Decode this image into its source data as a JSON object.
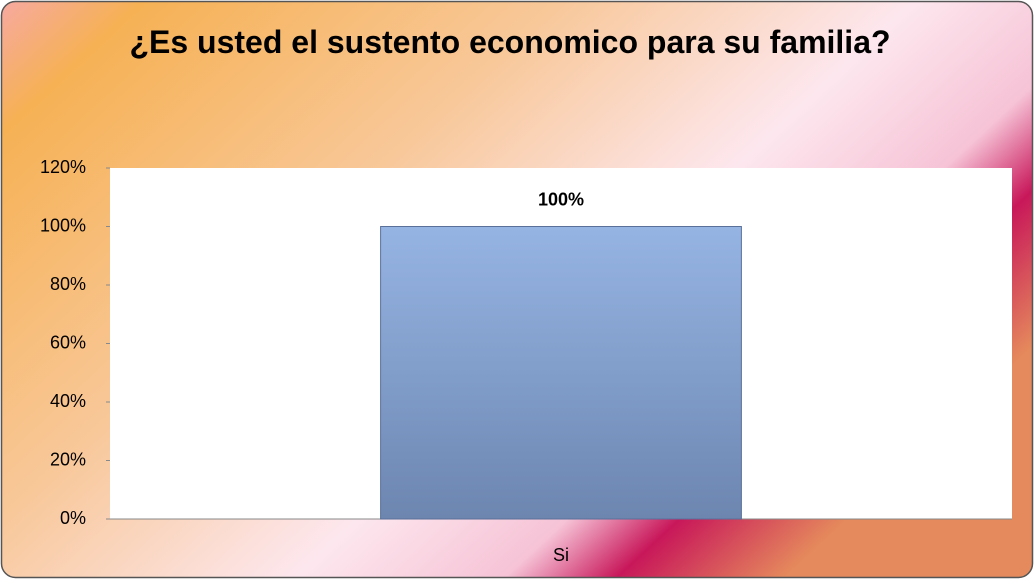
{
  "chart_data": {
    "type": "bar",
    "title": "¿Es usted el sustento economico para su familia?",
    "categories": [
      "Si"
    ],
    "values": [
      100
    ],
    "value_labels": [
      "100%"
    ],
    "color": "#86a3d2",
    "ylim": [
      0,
      120
    ],
    "yticks": [
      {
        "value": 0,
        "label": "0%"
      },
      {
        "value": 20,
        "label": "20%"
      },
      {
        "value": 40,
        "label": "40%"
      },
      {
        "value": 60,
        "label": "60%"
      },
      {
        "value": 80,
        "label": "80%"
      },
      {
        "value": 100,
        "label": "100%"
      },
      {
        "value": 120,
        "label": "120%"
      }
    ],
    "grid": false
  }
}
